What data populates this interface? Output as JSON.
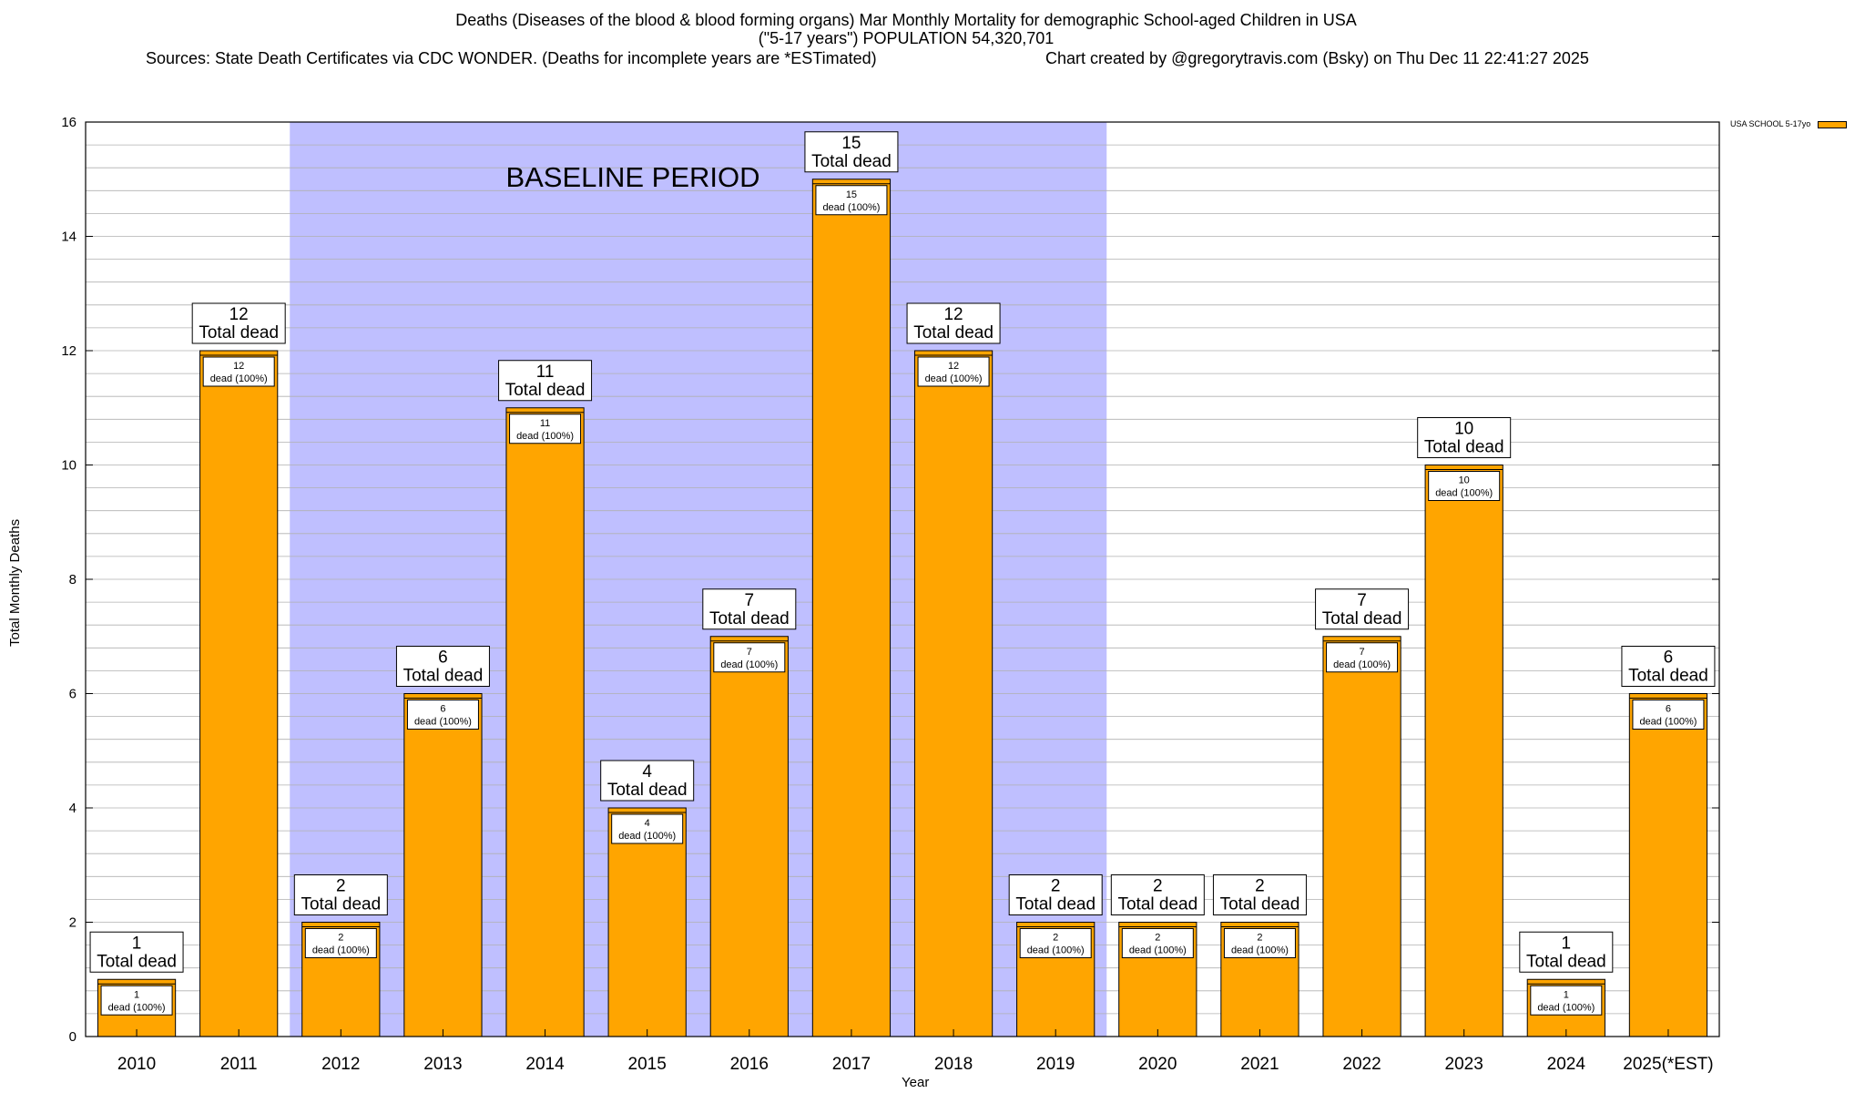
{
  "title": {
    "line1": "Deaths (Diseases of the blood & blood forming organs) Mar Monthly Mortality for demographic School-aged Children in USA",
    "line2": "(\"5-17 years\") POPULATION 54,320,701",
    "sources": "Sources: State Death Certificates via CDC WONDER. (Deaths for incomplete years are *ESTimated)",
    "credit": "Chart created by @gregorytravis.com (Bsky) on Thu Dec 11 22:41:27 2025"
  },
  "legend": {
    "label": "USA SCHOOL 5-17yo",
    "color": "#FFA500"
  },
  "colors": {
    "bar": "#FFA500",
    "baseline": "#BFBFFF",
    "grid": "#B0B0B0"
  },
  "chart_data": {
    "type": "bar",
    "categories": [
      "2010",
      "2011",
      "2012",
      "2013",
      "2014",
      "2015",
      "2016",
      "2017",
      "2018",
      "2019",
      "2020",
      "2021",
      "2022",
      "2023",
      "2024",
      "2025(*EST)"
    ],
    "series": [
      {
        "name": "USA SCHOOL 5-17yo",
        "values": [
          1,
          12,
          2,
          6,
          11,
          4,
          7,
          15,
          12,
          2,
          2,
          2,
          7,
          10,
          1,
          6
        ]
      }
    ],
    "xlabel": "Year",
    "ylabel": "Total Monthly Deaths",
    "ylim": [
      0,
      16
    ],
    "yticks": [
      0,
      2,
      4,
      6,
      8,
      10,
      12,
      14,
      16
    ],
    "grid": true,
    "legend_position": "top-right",
    "baseline_period": {
      "label": "BASELINE PERIOD",
      "from": "2012",
      "to": "2019"
    },
    "total_label_text": "Total dead",
    "inner_label_text": "dead (100%)"
  }
}
